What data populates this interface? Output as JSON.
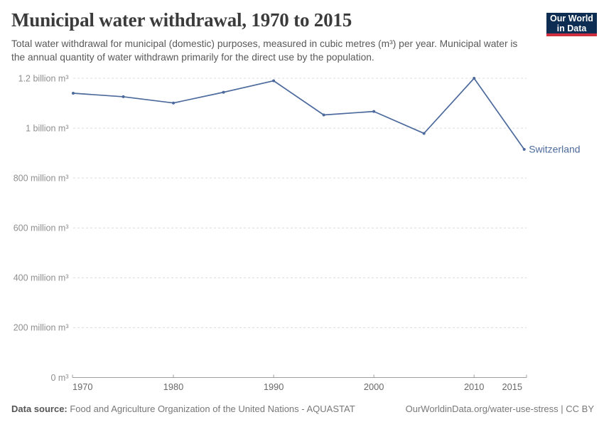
{
  "header": {
    "title": "Municipal water withdrawal, 1970 to 2015",
    "subtitle": "Total water withdrawal for municipal (domestic) purposes, measured in cubic metres (m³) per year. Municipal water is the annual quantity of water withdrawn primarily for the direct use by the population.",
    "logo": {
      "line1": "Our World",
      "line2": "in Data",
      "bg_color": "#0d2e52",
      "stripe_color": "#cf2e3c"
    }
  },
  "chart_data": {
    "type": "line",
    "title": "Municipal water withdrawal, 1970 to 2015",
    "x": [
      1970,
      1975,
      1980,
      1985,
      1990,
      1995,
      2000,
      2005,
      2010,
      2015
    ],
    "series": [
      {
        "name": "Switzerland",
        "color": "#4c6a9c",
        "unit": "m³",
        "values_million_m3": [
          1140,
          1126,
          1101,
          1144,
          1190,
          1053,
          1067,
          979,
          1200,
          915
        ]
      }
    ],
    "xlim": [
      1970,
      2015
    ],
    "ylim_million_m3": [
      0,
      1200
    ],
    "x_ticks": [
      {
        "value": 1970,
        "label": "1970"
      },
      {
        "value": 1980,
        "label": "1980"
      },
      {
        "value": 1990,
        "label": "1990"
      },
      {
        "value": 2000,
        "label": "2000"
      },
      {
        "value": 2010,
        "label": "2010"
      },
      {
        "value": 2015,
        "label": "2015"
      }
    ],
    "y_ticks": [
      {
        "value_million_m3": 0,
        "label": "0 m³"
      },
      {
        "value_million_m3": 200,
        "label": "200 million m³"
      },
      {
        "value_million_m3": 400,
        "label": "400 million m³"
      },
      {
        "value_million_m3": 600,
        "label": "600 million m³"
      },
      {
        "value_million_m3": 800,
        "label": "800 million m³"
      },
      {
        "value_million_m3": 1000,
        "label": "1 billion m³"
      },
      {
        "value_million_m3": 1200,
        "label": "1.2 billion m³"
      }
    ],
    "grid": "horizontal-dashed",
    "legend": "end-of-line-label",
    "colors": {
      "gridline": "#dcdcdc",
      "axis": "#9e9e9e",
      "y_tick_label": "#8f8f8f",
      "x_tick_label": "#696969"
    }
  },
  "footer": {
    "datasource_label": "Data source:",
    "datasource_text": " Food and Agriculture Organization of the United Nations - AQUASTAT",
    "right_text": "OurWorldinData.org/water-use-stress | CC BY"
  }
}
